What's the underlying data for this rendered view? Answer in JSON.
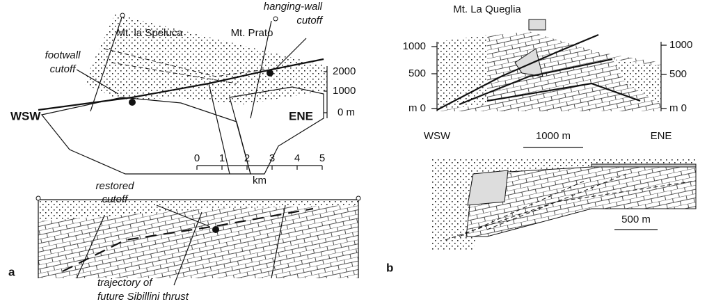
{
  "panel_a": {
    "label": "a",
    "upper": {
      "footwall_cutoff": [
        "footwall",
        "cutoff"
      ],
      "peak_left": "Mt. la Speluca",
      "peak_right": "Mt. Prato",
      "hanging_wall_cutoff": [
        "hanging-wall",
        "cutoff"
      ],
      "west": "WSW",
      "east": "ENE",
      "elevation_labels": [
        "2000",
        "1000",
        "0 m"
      ],
      "scale_ticks": [
        "0",
        "1",
        "2",
        "3",
        "4",
        "5"
      ],
      "scale_unit": "km"
    },
    "lower": {
      "restored_cutoff": [
        "restored",
        "cutoff"
      ],
      "trajectory": [
        "trajectory of",
        "future Sibillini thrust"
      ]
    }
  },
  "panel_b": {
    "label": "b",
    "upper": {
      "peak": "Mt. La Queglia",
      "left_elevation_labels": [
        "1000",
        "500",
        "m 0"
      ],
      "right_elevation_labels": [
        "1000",
        "500",
        "m 0"
      ],
      "west": "WSW",
      "scale": "1000 m",
      "east": "ENE"
    },
    "lower": {
      "scale": "500 m"
    }
  }
}
